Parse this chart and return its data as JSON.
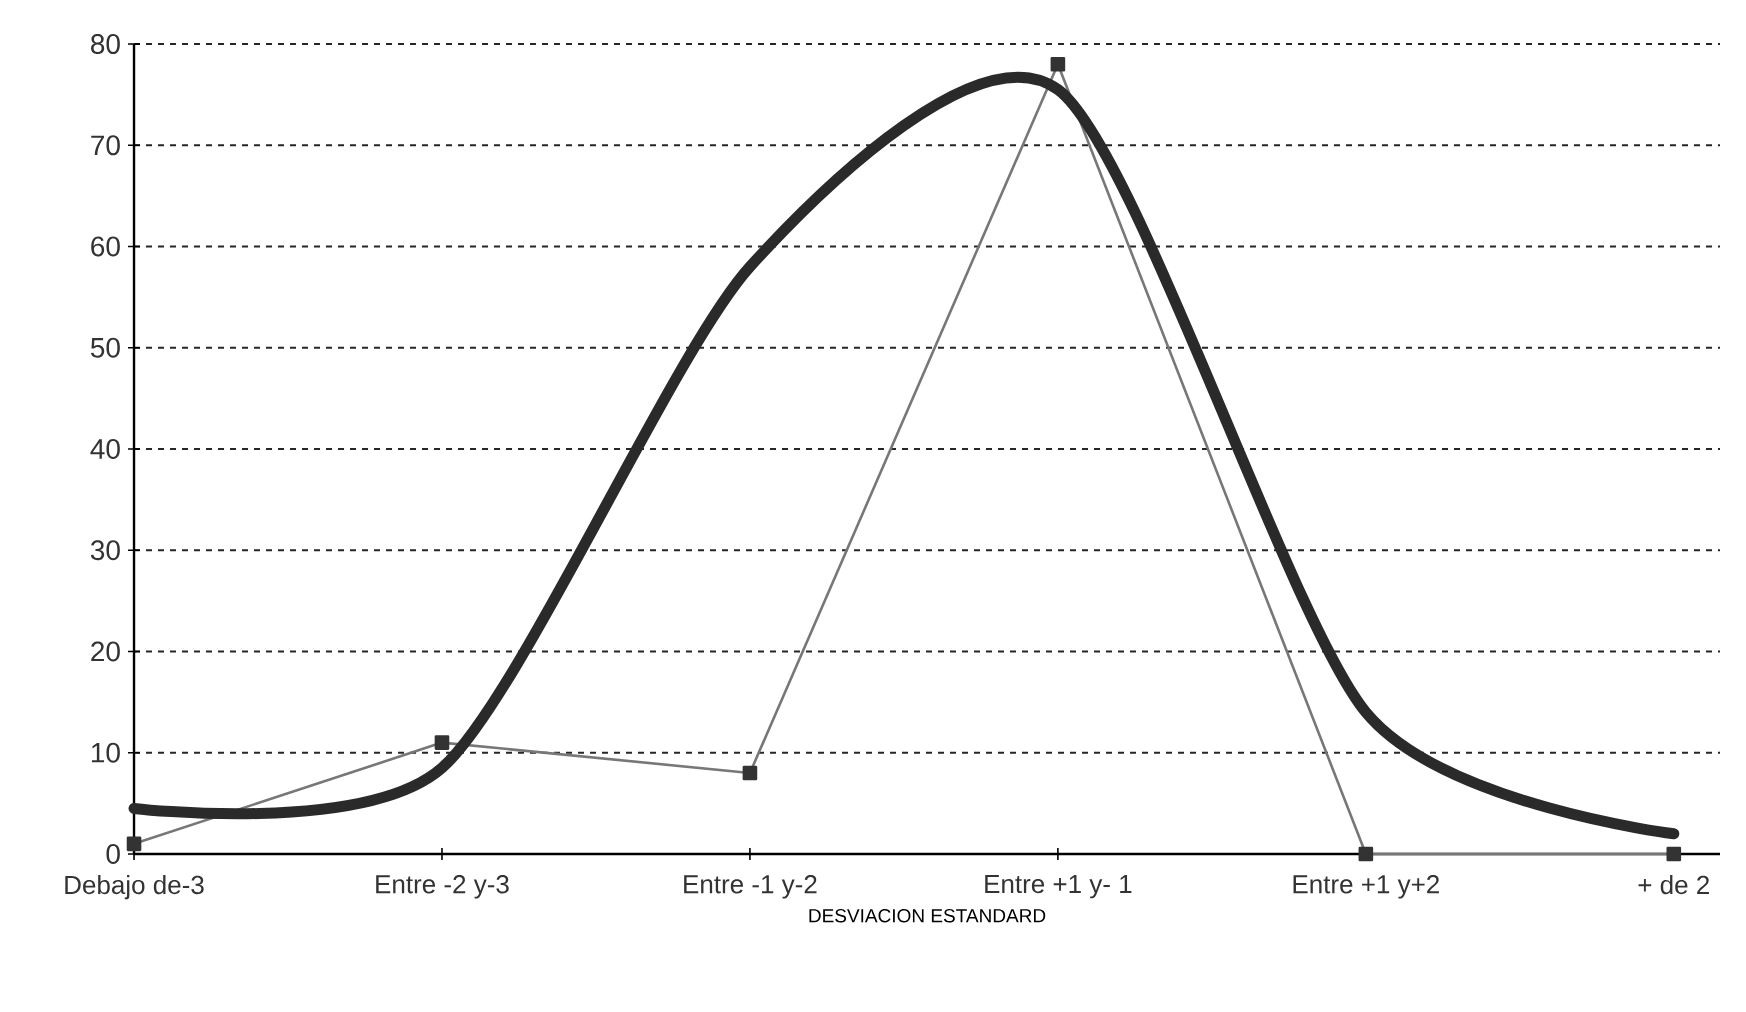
{
  "chart_data": {
    "type": "line",
    "xlabel": "DESVIACION ESTANDARD",
    "categories": [
      "Debajo de-3",
      "Entre -2 y-3",
      "Entre -1 y-2",
      "Entre +1 y- 1",
      "Entre +1 y+2",
      "+ de 2"
    ],
    "series": [
      {
        "color": "#777777",
        "marker": "square",
        "values": [
          1,
          11,
          8,
          78,
          0,
          0
        ]
      },
      {
        "color": "#2a2a2a",
        "marker": "none",
        "values": [
          4.5,
          8.5,
          58,
          75.5,
          14,
          2
        ]
      }
    ],
    "ylim": [
      0,
      80
    ],
    "yticks": [
      0,
      10,
      20,
      30,
      40,
      50,
      60,
      70,
      80
    ],
    "grid": "y"
  }
}
